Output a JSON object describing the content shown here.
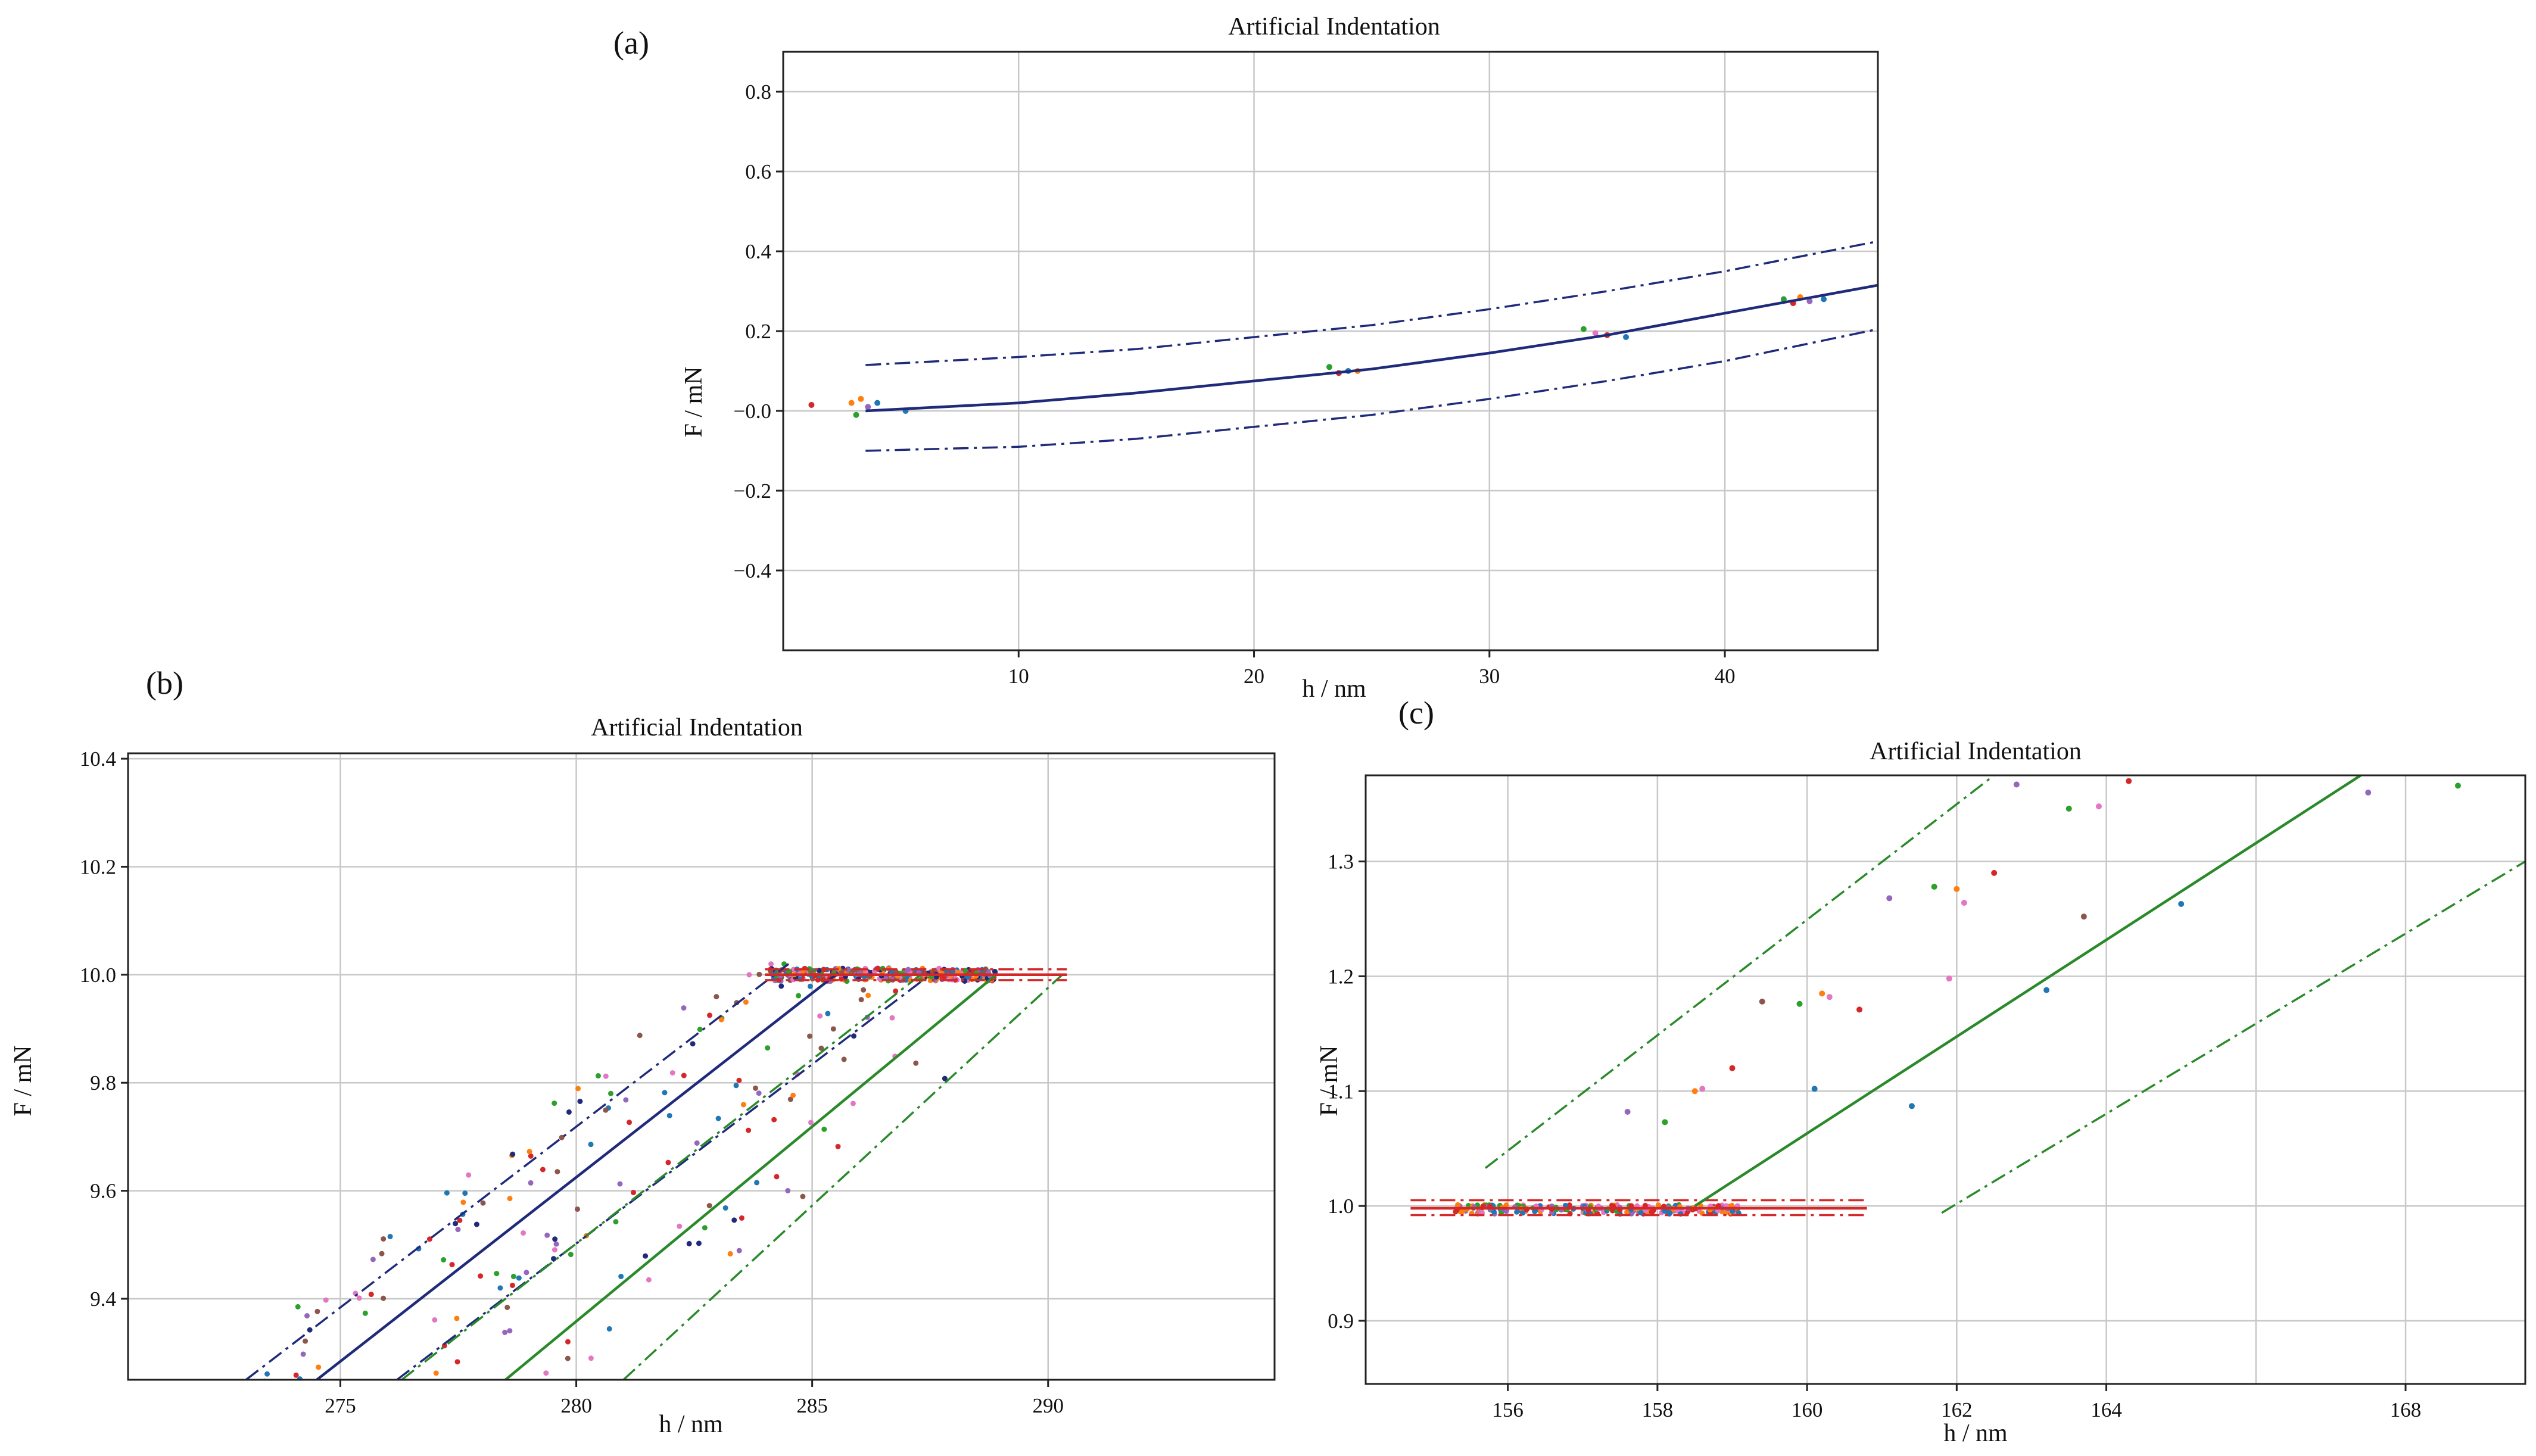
{
  "chart_data": [
    {
      "type": "scatter",
      "panel_label": "(a)",
      "title": "Artificial Indentation",
      "xlabel": "h / nm",
      "ylabel": "F / mN",
      "xlim": [
        0,
        46.5
      ],
      "ylim": [
        -0.6,
        0.9
      ],
      "xticks": [
        10,
        20,
        30,
        40
      ],
      "yticks": [
        -0.4,
        -0.2,
        0.0,
        0.2,
        0.4,
        0.6,
        0.8
      ],
      "xtick_labels": [
        "10",
        "20",
        "30",
        "40"
      ],
      "ytick_labels": [
        "−0.4",
        "−0.2",
        "−0.0",
        "0.2",
        "0.4",
        "0.6",
        "0.8"
      ],
      "grid": true,
      "fit_curves": [
        {
          "name": "fit",
          "style": "solid",
          "color": "#1f2a7a",
          "x": [
            3.5,
            10,
            15,
            20,
            25,
            30,
            35,
            40,
            46.5
          ],
          "y": [
            0.0,
            0.02,
            0.045,
            0.075,
            0.105,
            0.145,
            0.19,
            0.245,
            0.315
          ]
        },
        {
          "name": "upper band",
          "style": "dashdot",
          "color": "#1f2a7a",
          "x": [
            3.5,
            10,
            15,
            20,
            25,
            30,
            35,
            40,
            46.5
          ],
          "y": [
            0.115,
            0.135,
            0.155,
            0.185,
            0.215,
            0.255,
            0.3,
            0.35,
            0.425
          ]
        },
        {
          "name": "lower band",
          "style": "dashdot",
          "color": "#1f2a7a",
          "x": [
            3.5,
            10,
            15,
            20,
            25,
            30,
            35,
            40,
            46.5
          ],
          "y": [
            -0.1,
            -0.09,
            -0.07,
            -0.04,
            -0.01,
            0.03,
            0.075,
            0.125,
            0.205
          ]
        }
      ],
      "points": [
        {
          "x": 1.2,
          "y": 0.015,
          "c": "#d62728"
        },
        {
          "x": 2.9,
          "y": 0.02,
          "c": "#ff7f0e"
        },
        {
          "x": 3.1,
          "y": -0.01,
          "c": "#2ca02c"
        },
        {
          "x": 3.3,
          "y": 0.03,
          "c": "#ff7f0e"
        },
        {
          "x": 3.6,
          "y": 0.01,
          "c": "#9467bd"
        },
        {
          "x": 4.0,
          "y": 0.02,
          "c": "#1f77b4"
        },
        {
          "x": 5.2,
          "y": 0.0,
          "c": "#1f77b4"
        },
        {
          "x": 23.2,
          "y": 0.11,
          "c": "#2ca02c"
        },
        {
          "x": 23.6,
          "y": 0.095,
          "c": "#d62728"
        },
        {
          "x": 24.0,
          "y": 0.1,
          "c": "#1f77b4"
        },
        {
          "x": 24.4,
          "y": 0.1,
          "c": "#ff7f0e"
        },
        {
          "x": 34.0,
          "y": 0.205,
          "c": "#2ca02c"
        },
        {
          "x": 34.5,
          "y": 0.195,
          "c": "#e377c2"
        },
        {
          "x": 35.0,
          "y": 0.19,
          "c": "#d62728"
        },
        {
          "x": 35.8,
          "y": 0.185,
          "c": "#1f77b4"
        },
        {
          "x": 42.5,
          "y": 0.28,
          "c": "#2ca02c"
        },
        {
          "x": 42.9,
          "y": 0.27,
          "c": "#d62728"
        },
        {
          "x": 43.2,
          "y": 0.285,
          "c": "#ff7f0e"
        },
        {
          "x": 43.6,
          "y": 0.275,
          "c": "#9467bd"
        },
        {
          "x": 44.2,
          "y": 0.28,
          "c": "#1f77b4"
        }
      ]
    },
    {
      "type": "scatter",
      "panel_label": "(b)",
      "title": "Artificial Indentation",
      "xlabel": "h / nm",
      "ylabel": "F / mN",
      "xlim": [
        270.5,
        294.8
      ],
      "ylim": [
        9.25,
        10.41
      ],
      "xticks": [
        275,
        280,
        285,
        290
      ],
      "yticks": [
        9.4,
        9.6,
        9.8,
        10.0,
        10.2,
        10.4
      ],
      "xtick_labels": [
        "275",
        "280",
        "285",
        "290"
      ],
      "ytick_labels": [
        "9.4",
        "9.6",
        "9.8",
        "10.0",
        "10.2",
        "10.4"
      ],
      "grid": true,
      "fit_curves": [
        {
          "name": "blue fit",
          "style": "solid",
          "color": "#1f2a7a",
          "x": [
            274.5,
            285.5
          ],
          "y": [
            9.25,
            10.0
          ]
        },
        {
          "name": "blue upper band",
          "style": "dashdot",
          "color": "#1f2a7a",
          "x": [
            273.0,
            284.5
          ],
          "y": [
            9.25,
            10.02
          ]
        },
        {
          "name": "blue lower band",
          "style": "dashdot",
          "color": "#1f2a7a",
          "x": [
            276.2,
            287.5
          ],
          "y": [
            9.25,
            10.0
          ]
        },
        {
          "name": "green fit",
          "style": "solid",
          "color": "#2a8a2a",
          "x": [
            278.5,
            288.9
          ],
          "y": [
            9.25,
            10.0
          ]
        },
        {
          "name": "green upper band",
          "style": "dashdot",
          "color": "#2a8a2a",
          "x": [
            276.3,
            287.3
          ],
          "y": [
            9.25,
            10.0
          ]
        },
        {
          "name": "green lower band",
          "style": "dashdot",
          "color": "#2a8a2a",
          "x": [
            281.0,
            290.3
          ],
          "y": [
            9.25,
            10.0
          ]
        },
        {
          "name": "red plateau fit",
          "style": "solid",
          "color": "#d62728",
          "x": [
            284.0,
            290.4
          ],
          "y": [
            10.0,
            10.0
          ]
        },
        {
          "name": "red upper band",
          "style": "dashdot",
          "color": "#d62728",
          "x": [
            284.0,
            290.4
          ],
          "y": [
            10.01,
            10.01
          ]
        },
        {
          "name": "red lower band",
          "style": "dashdot",
          "color": "#d62728",
          "x": [
            284.0,
            290.4
          ],
          "y": [
            9.99,
            9.99
          ]
        }
      ],
      "scatter_bands": [
        {
          "x_start": 273.2,
          "x_end": 285.0,
          "spread": 0.7,
          "count": 80,
          "seed": 11
        },
        {
          "x_start": 276.0,
          "x_end": 287.2,
          "spread": 0.8,
          "count": 60,
          "seed": 23
        },
        {
          "x_start": 278.8,
          "x_end": 288.2,
          "spread": 0.9,
          "count": 30,
          "seed": 37
        }
      ],
      "plateau_points": {
        "x_start": 284.1,
        "x_end": 288.9,
        "y_center": 10.0,
        "spread": 0.012,
        "count": 320,
        "seed": 5
      },
      "colors": [
        "#1f77b4",
        "#ff7f0e",
        "#2ca02c",
        "#d62728",
        "#9467bd",
        "#8c564b",
        "#e377c2",
        "#1f2a7a"
      ]
    },
    {
      "type": "scatter",
      "panel_label": "(c)",
      "title": "Artificial Indentation",
      "xlabel": "h / nm",
      "ylabel": "F / mN",
      "xlim": [
        154.1,
        169.6
      ],
      "ylim": [
        0.845,
        1.375
      ],
      "xticks": [
        156,
        158,
        160,
        162,
        164,
        168
      ],
      "yticks": [
        0.9,
        1.0,
        1.1,
        1.2,
        1.3
      ],
      "xtick_labels": [
        "156",
        "158",
        "160",
        "162",
        "164",
        "168"
      ],
      "ytick_labels": [
        "0.9",
        "1.0",
        "1.1",
        "1.2",
        "1.3"
      ],
      "grid_x": [
        156,
        158,
        160,
        162,
        164,
        166,
        168
      ],
      "fit_curves": [
        {
          "name": "red plateau fit",
          "style": "solid",
          "color": "#d62728",
          "x": [
            154.7,
            160.8
          ],
          "y": [
            0.998,
            0.998
          ]
        },
        {
          "name": "red upper band",
          "style": "dashdot",
          "color": "#d62728",
          "x": [
            154.7,
            160.8
          ],
          "y": [
            1.005,
            1.005
          ]
        },
        {
          "name": "red lower band",
          "style": "dashdot",
          "color": "#d62728",
          "x": [
            154.7,
            160.8
          ],
          "y": [
            0.992,
            0.992
          ]
        },
        {
          "name": "green fit",
          "style": "solid",
          "color": "#2a8a2a",
          "x": [
            158.5,
            167.4
          ],
          "y": [
            1.0,
            1.375
          ]
        },
        {
          "name": "green upper band",
          "style": "dashdot",
          "color": "#2a8a2a",
          "x": [
            155.7,
            162.5
          ],
          "y": [
            1.033,
            1.375
          ]
        },
        {
          "name": "green lower band",
          "style": "dashdot",
          "color": "#2a8a2a",
          "x": [
            161.8,
            169.6
          ],
          "y": [
            0.994,
            1.3
          ]
        }
      ],
      "points": [
        {
          "x": 157.6,
          "y": 1.082,
          "c": "#9467bd"
        },
        {
          "x": 158.1,
          "y": 1.073,
          "c": "#2ca02c"
        },
        {
          "x": 158.5,
          "y": 1.1,
          "c": "#ff7f0e"
        },
        {
          "x": 158.6,
          "y": 1.102,
          "c": "#e377c2"
        },
        {
          "x": 159.0,
          "y": 1.12,
          "c": "#d62728"
        },
        {
          "x": 159.4,
          "y": 1.178,
          "c": "#8c564b"
        },
        {
          "x": 159.9,
          "y": 1.176,
          "c": "#2ca02c"
        },
        {
          "x": 160.2,
          "y": 1.185,
          "c": "#ff7f0e"
        },
        {
          "x": 160.3,
          "y": 1.182,
          "c": "#e377c2"
        },
        {
          "x": 160.1,
          "y": 1.102,
          "c": "#1f77b4"
        },
        {
          "x": 160.7,
          "y": 1.171,
          "c": "#d62728"
        },
        {
          "x": 161.1,
          "y": 1.268,
          "c": "#9467bd"
        },
        {
          "x": 161.4,
          "y": 1.087,
          "c": "#1f77b4"
        },
        {
          "x": 161.7,
          "y": 1.278,
          "c": "#2ca02c"
        },
        {
          "x": 161.9,
          "y": 1.198,
          "c": "#e377c2"
        },
        {
          "x": 162.0,
          "y": 1.276,
          "c": "#ff7f0e"
        },
        {
          "x": 162.1,
          "y": 1.264,
          "c": "#e377c2"
        },
        {
          "x": 162.5,
          "y": 1.29,
          "c": "#d62728"
        },
        {
          "x": 162.8,
          "y": 1.367,
          "c": "#9467bd"
        },
        {
          "x": 163.2,
          "y": 1.188,
          "c": "#1f77b4"
        },
        {
          "x": 163.5,
          "y": 1.346,
          "c": "#2ca02c"
        },
        {
          "x": 163.7,
          "y": 1.252,
          "c": "#8c564b"
        },
        {
          "x": 163.9,
          "y": 1.348,
          "c": "#e377c2"
        },
        {
          "x": 164.3,
          "y": 1.37,
          "c": "#d62728"
        },
        {
          "x": 165.0,
          "y": 1.263,
          "c": "#1f77b4"
        },
        {
          "x": 167.5,
          "y": 1.36,
          "c": "#9467bd"
        },
        {
          "x": 168.7,
          "y": 1.366,
          "c": "#2ca02c"
        }
      ],
      "plateau_points": {
        "x_start": 155.3,
        "x_end": 159.1,
        "y_center": 0.997,
        "spread": 0.004,
        "count": 260,
        "seed": 9
      },
      "colors": [
        "#d62728",
        "#e377c2",
        "#ff7f0e",
        "#9467bd",
        "#2ca02c",
        "#1f77b4"
      ]
    }
  ]
}
